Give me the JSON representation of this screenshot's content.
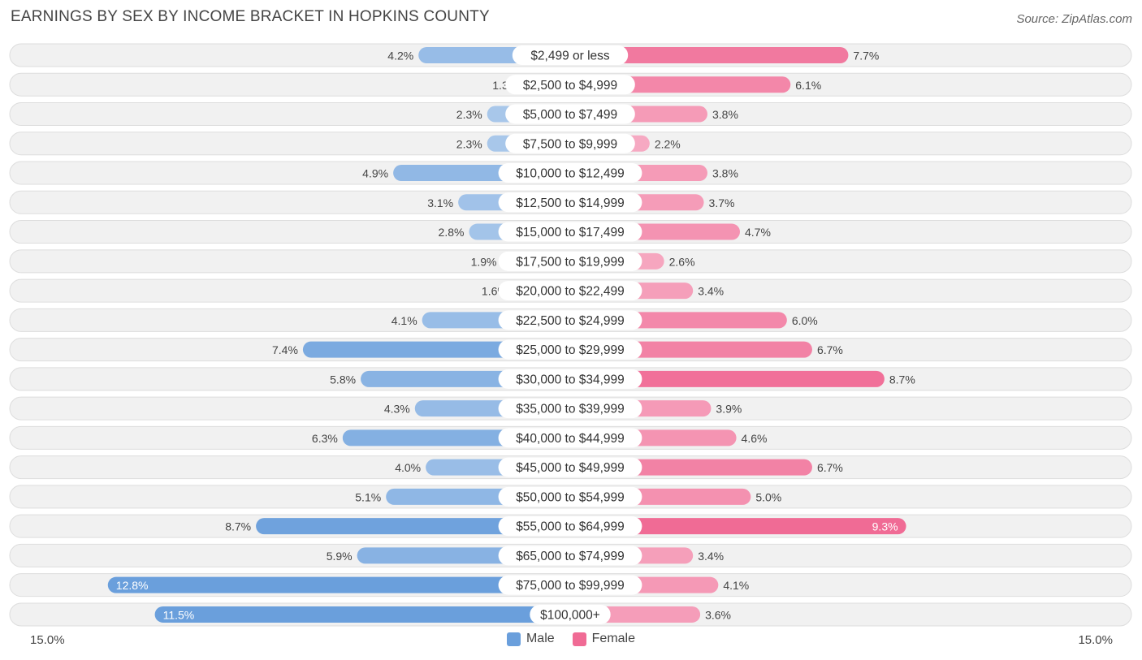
{
  "title": "EARNINGS BY SEX BY INCOME BRACKET IN HOPKINS COUNTY",
  "source": "Source: ZipAtlas.com",
  "colors": {
    "male": "#6a9fdc",
    "female": "#f06b95"
  },
  "chart_data": {
    "type": "bar",
    "orientation": "horizontal-diverging",
    "title": "EARNINGS BY SEX BY INCOME BRACKET IN HOPKINS COUNTY",
    "xlim": [
      -15.0,
      15.0
    ],
    "axis_labels": {
      "left": "15.0%",
      "right": "15.0%"
    },
    "unit": "%",
    "categories": [
      "$2,499 or less",
      "$2,500 to $4,999",
      "$5,000 to $7,499",
      "$7,500 to $9,999",
      "$10,000 to $12,499",
      "$12,500 to $14,999",
      "$15,000 to $17,499",
      "$17,500 to $19,999",
      "$20,000 to $22,499",
      "$22,500 to $24,999",
      "$25,000 to $29,999",
      "$30,000 to $34,999",
      "$35,000 to $39,999",
      "$40,000 to $44,999",
      "$45,000 to $49,999",
      "$50,000 to $54,999",
      "$55,000 to $64,999",
      "$65,000 to $74,999",
      "$75,000 to $99,999",
      "$100,000+"
    ],
    "series": [
      {
        "name": "Male",
        "values": [
          4.2,
          1.3,
          2.3,
          2.3,
          4.9,
          3.1,
          2.8,
          1.9,
          1.6,
          4.1,
          7.4,
          5.8,
          4.3,
          6.3,
          4.0,
          5.1,
          8.7,
          5.9,
          12.8,
          11.5
        ]
      },
      {
        "name": "Female",
        "values": [
          7.7,
          6.1,
          3.8,
          2.2,
          3.8,
          3.7,
          4.7,
          2.6,
          3.4,
          6.0,
          6.7,
          8.7,
          3.9,
          4.6,
          6.7,
          5.0,
          9.3,
          3.4,
          4.1,
          3.6
        ]
      }
    ],
    "legend": [
      "Male",
      "Female"
    ],
    "legend_position": "bottom-center"
  }
}
